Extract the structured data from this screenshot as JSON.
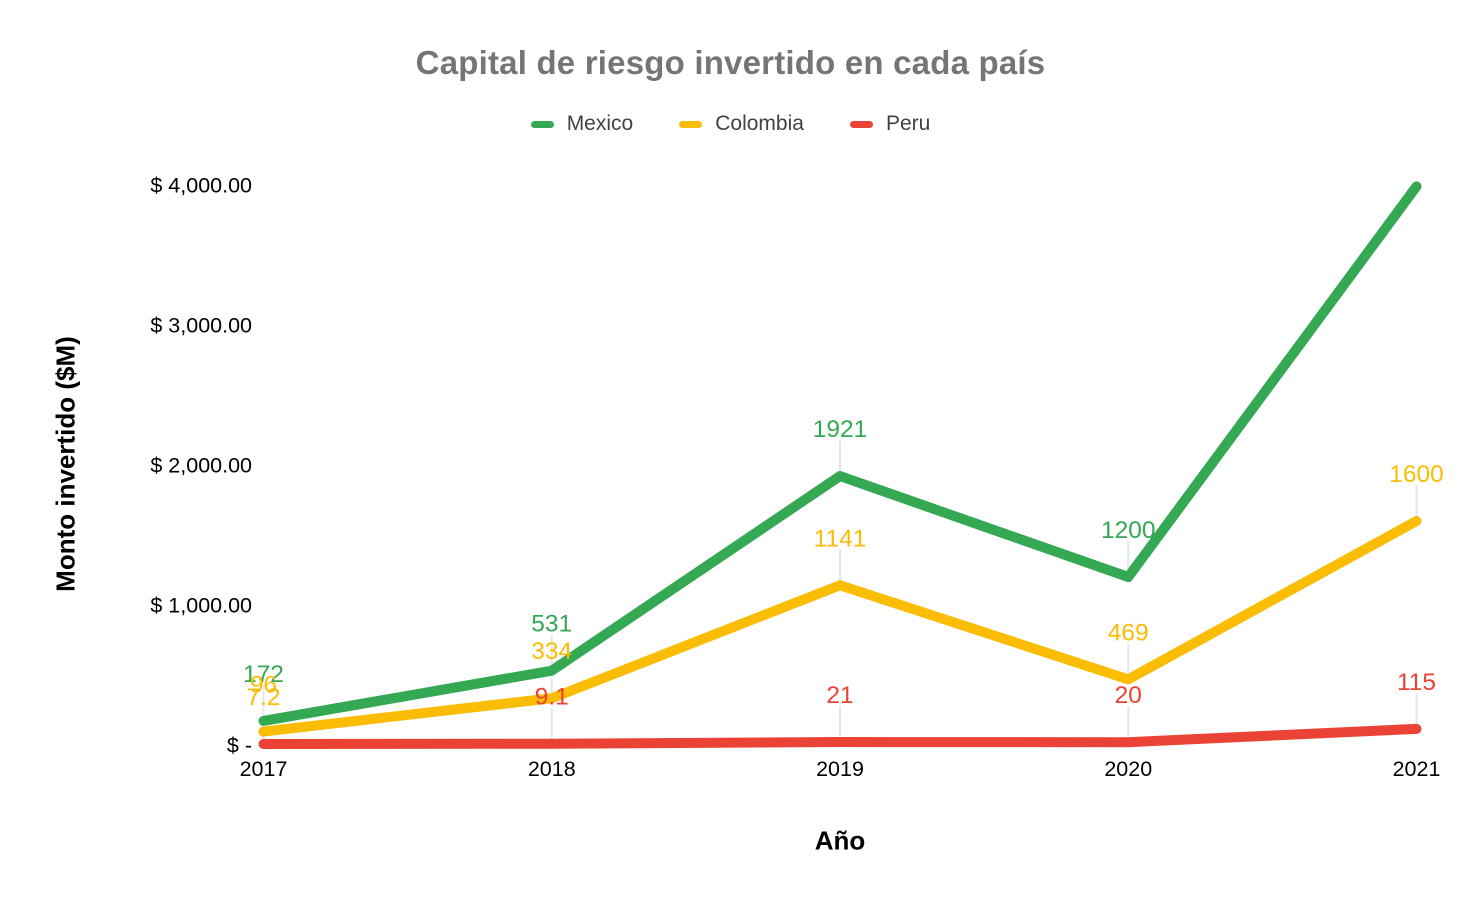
{
  "page": {
    "background": "#ffffff"
  },
  "chart_data": {
    "type": "line",
    "title": "Capital de riesgo invertido en cada país",
    "title_color": "#757575",
    "xlabel": "Año",
    "ylabel": "Monto invertido ($M)",
    "x_categories": [
      "2017",
      "2018",
      "2019",
      "2020",
      "2021"
    ],
    "y_ticks": [
      {
        "value": 0,
        "label": "$ -"
      },
      {
        "value": 1000,
        "label": "$ 1,000.00"
      },
      {
        "value": 2000,
        "label": "$ 2,000.00"
      },
      {
        "value": 3000,
        "label": "$ 3,000.00"
      },
      {
        "value": 4000,
        "label": "$ 4,000.00"
      }
    ],
    "ylim": [
      0,
      4000
    ],
    "grid": "none",
    "legend_position": "top",
    "axis_text_color": "#000000",
    "leader_line_color": "#e6e6e6",
    "series": [
      {
        "name": "Mexico",
        "color": "#34A853",
        "values": [
          172,
          531,
          1921,
          1200,
          3990
        ],
        "labels": [
          "172",
          "531",
          "1921",
          "1200",
          ""
        ]
      },
      {
        "name": "Colombia",
        "color": "#FBBC04",
        "values": [
          96,
          334,
          1141,
          469,
          1600
        ],
        "labels": [
          "96",
          "334",
          "1141",
          "469",
          "1600"
        ]
      },
      {
        "name": "Peru",
        "color": "#EA4335",
        "values": [
          7.2,
          9.1,
          21,
          20,
          115
        ],
        "labels": [
          "7.2",
          "9.1",
          "21",
          "20",
          "115"
        ],
        "label_colors": [
          "#FBBC04",
          null,
          null,
          null,
          null
        ]
      }
    ]
  }
}
